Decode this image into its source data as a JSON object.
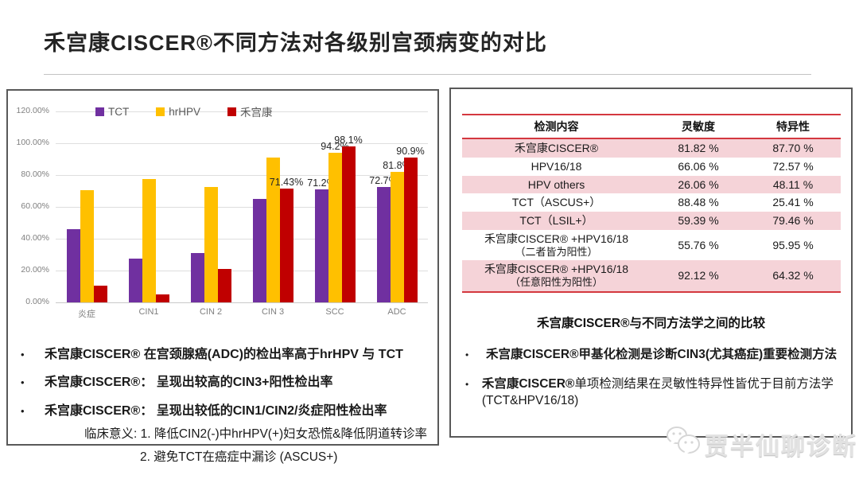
{
  "page": {
    "title": "禾宫康CISCER®不同方法对各级别宫颈病变的对比",
    "watermark_text": "贾半仙聊诊断"
  },
  "chart_data": {
    "type": "bar",
    "title": "",
    "xlabel": "",
    "ylabel": "",
    "ylim": [
      0,
      120
    ],
    "grid": true,
    "legend_position": "top",
    "yticks": [
      "120.00%",
      "100.00%",
      "80.00%",
      "60.00%",
      "40.00%",
      "20.00%",
      "0.00%"
    ],
    "categories": [
      "炎症",
      "CIN1",
      "CIN 2",
      "CIN 3",
      "SCC",
      "ADC"
    ],
    "series": [
      {
        "name": "TCT",
        "color": "#7030A0",
        "values": [
          46,
          27.5,
          31,
          65,
          71.2,
          72.7
        ],
        "labels": [
          null,
          null,
          null,
          null,
          "71.2%",
          "72.7%"
        ]
      },
      {
        "name": "hrHPV",
        "color": "#FFC000",
        "values": [
          70.5,
          77.5,
          72.5,
          91,
          94.2,
          81.8
        ],
        "labels": [
          null,
          null,
          null,
          null,
          "94.2%",
          "81.8%"
        ]
      },
      {
        "name": "禾宫康",
        "color": "#C00000",
        "values": [
          10.5,
          5,
          21,
          71.43,
          98.1,
          90.9
        ],
        "labels": [
          null,
          null,
          null,
          "71.43%",
          "98.1%",
          "90.9%"
        ]
      }
    ]
  },
  "left_panel": {
    "bullets": [
      "禾宫康CISCER® 在宫颈腺癌(ADC)的检出率高于hrHPV 与 TCT",
      "禾宫康CISCER®： 呈现出较高的CIN3+阳性检出率",
      "禾宫康CISCER®： 呈现出较低的CIN1/CIN2/炎症阳性检出率"
    ],
    "notes": [
      "临床意义: 1. 降低CIN2(-)中hrHPV(+)妇女恐慌&降低阴道转诊率",
      "2. 避免TCT在癌症中漏诊 (ASCUS+)"
    ]
  },
  "right_panel": {
    "table": {
      "headers": [
        "检测内容",
        "灵敏度",
        "特异性"
      ],
      "rows": [
        {
          "name": "禾宫康CISCER®",
          "name2": "",
          "sensitivity": "81.82 %",
          "specificity": "87.70 %"
        },
        {
          "name": "HPV16/18",
          "name2": "",
          "sensitivity": "66.06 %",
          "specificity": "72.57 %"
        },
        {
          "name": "HPV others",
          "name2": "",
          "sensitivity": "26.06 %",
          "specificity": "48.11 %"
        },
        {
          "name": "TCT（ASCUS+）",
          "name2": "",
          "sensitivity": "88.48 %",
          "specificity": "25.41 %"
        },
        {
          "name": "TCT（LSIL+）",
          "name2": "",
          "sensitivity": "59.39 %",
          "specificity": "79.46 %"
        },
        {
          "name": "禾宫康CISCER® +HPV16/18",
          "name2": "（二者皆为阳性）",
          "sensitivity": "55.76 %",
          "specificity": "95.95 %"
        },
        {
          "name": "禾宫康CISCER® +HPV16/18",
          "name2": "（任意阳性为阳性）",
          "sensitivity": "92.12 %",
          "specificity": "64.32 %"
        }
      ]
    },
    "subtitle": "禾宫康CISCER®与不同方法学之间的比较",
    "bullets": [
      {
        "lead": "禾宫康CISCER®",
        "rest": "甲基化检测是诊断CIN3(尤其癌症)重要检测方法",
        "rest_bold": true
      },
      {
        "lead": "禾宫康CISCER®",
        "rest": "单项检测结果在灵敏性特异性皆优于目前方法学(TCT&HPV16/18)",
        "rest_bold": false
      }
    ]
  }
}
